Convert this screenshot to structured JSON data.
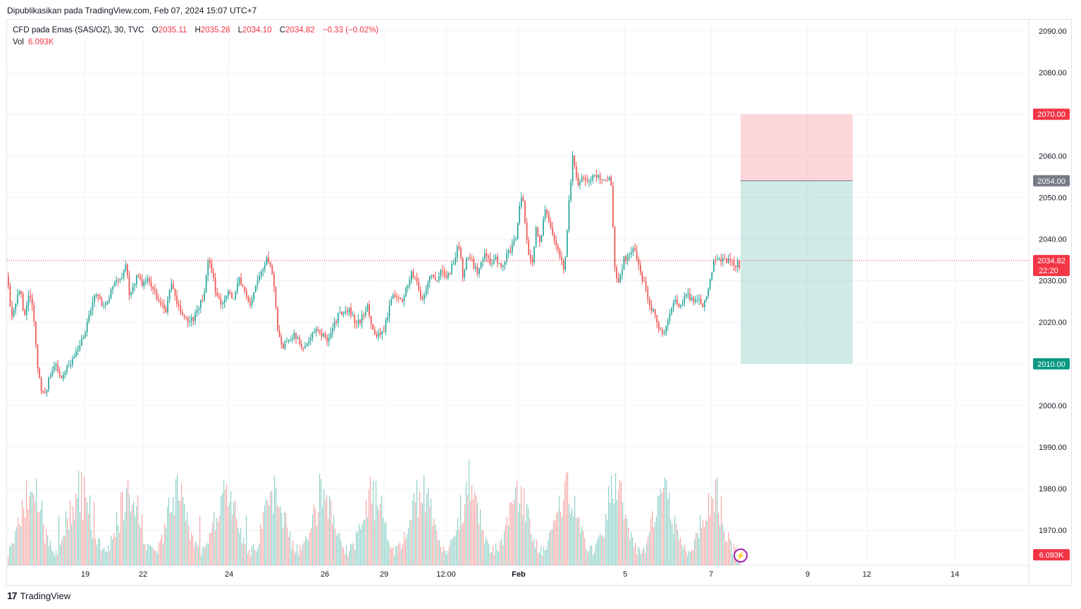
{
  "header": {
    "published": "Dipublikasikan pada TradingView.com, Feb 07, 2024 15:07 UTC+7"
  },
  "legend": {
    "symbol": "CFD pada Emas (SAS/OZ), 30, TVC",
    "open_label": "O",
    "open": "2035.11",
    "high_label": "H",
    "high": "2035.28",
    "low_label": "L",
    "low": "2034.10",
    "close_label": "C",
    "close": "2034.82",
    "change": "−0.33 (−0.02%)",
    "vol_label": "Vol",
    "vol": "6.093K"
  },
  "footer": {
    "brand": "TradingView",
    "logo": "17"
  },
  "colors": {
    "up": "#26a69a",
    "down": "#ef5350",
    "stop": "#f23645",
    "target": "#089981",
    "entry": "#787b86"
  },
  "chart_data": {
    "type": "candlestick",
    "symbol": "CFD pada Emas (SAS/OZ)",
    "interval": "30",
    "y_axis": {
      "ticks": [
        2090,
        2080,
        2070,
        2060,
        2050,
        2040,
        2030,
        2020,
        2010,
        2000,
        1990,
        1980,
        1970
      ],
      "range": [
        1965,
        2094
      ]
    },
    "x_ticks": [
      "19",
      "22",
      "24",
      "26",
      "29",
      "12:00",
      "Feb",
      "5",
      "7",
      "9",
      "12",
      "14"
    ],
    "price_path": [
      [
        0,
        2031
      ],
      [
        5,
        2020
      ],
      [
        12,
        2025
      ],
      [
        18,
        2028
      ],
      [
        24,
        2021
      ],
      [
        30,
        2027
      ],
      [
        36,
        2024
      ],
      [
        42,
        2010
      ],
      [
        48,
        2004
      ],
      [
        52,
        2002
      ],
      [
        60,
        2007
      ],
      [
        68,
        2010
      ],
      [
        76,
        2007
      ],
      [
        84,
        2009
      ],
      [
        92,
        2011
      ],
      [
        100,
        2014
      ],
      [
        108,
        2017
      ],
      [
        116,
        2022
      ],
      [
        124,
        2027
      ],
      [
        132,
        2025
      ],
      [
        140,
        2024
      ],
      [
        148,
        2028
      ],
      [
        156,
        2030
      ],
      [
        164,
        2032
      ],
      [
        168,
        2035
      ],
      [
        172,
        2026
      ],
      [
        176,
        2028
      ],
      [
        184,
        2031
      ],
      [
        192,
        2029
      ],
      [
        200,
        2030
      ],
      [
        208,
        2027
      ],
      [
        216,
        2025
      ],
      [
        224,
        2022
      ],
      [
        232,
        2030
      ],
      [
        240,
        2024
      ],
      [
        248,
        2022
      ],
      [
        256,
        2020
      ],
      [
        264,
        2021
      ],
      [
        272,
        2024
      ],
      [
        280,
        2027
      ],
      [
        284,
        2035
      ],
      [
        288,
        2033
      ],
      [
        296,
        2027
      ],
      [
        304,
        2024
      ],
      [
        312,
        2028
      ],
      [
        320,
        2025
      ],
      [
        328,
        2031
      ],
      [
        336,
        2027
      ],
      [
        344,
        2024
      ],
      [
        352,
        2029
      ],
      [
        360,
        2032
      ],
      [
        368,
        2035
      ],
      [
        374,
        2034
      ],
      [
        380,
        2025
      ],
      [
        384,
        2017
      ],
      [
        390,
        2014
      ],
      [
        398,
        2016
      ],
      [
        406,
        2017
      ],
      [
        414,
        2015
      ],
      [
        422,
        2014
      ],
      [
        430,
        2016
      ],
      [
        438,
        2018
      ],
      [
        446,
        2017
      ],
      [
        454,
        2016
      ],
      [
        462,
        2019
      ],
      [
        470,
        2022
      ],
      [
        478,
        2022
      ],
      [
        486,
        2023
      ],
      [
        494,
        2019
      ],
      [
        502,
        2021
      ],
      [
        510,
        2024
      ],
      [
        518,
        2018
      ],
      [
        526,
        2017
      ],
      [
        534,
        2018
      ],
      [
        542,
        2024
      ],
      [
        550,
        2027
      ],
      [
        558,
        2025
      ],
      [
        566,
        2028
      ],
      [
        574,
        2032
      ],
      [
        580,
        2030
      ],
      [
        588,
        2025
      ],
      [
        594,
        2028
      ],
      [
        600,
        2032
      ],
      [
        608,
        2029
      ],
      [
        616,
        2033
      ],
      [
        624,
        2031
      ],
      [
        632,
        2034
      ],
      [
        640,
        2039
      ],
      [
        646,
        2031
      ],
      [
        652,
        2036
      ],
      [
        660,
        2034
      ],
      [
        668,
        2032
      ],
      [
        676,
        2037
      ],
      [
        684,
        2034
      ],
      [
        692,
        2036
      ],
      [
        700,
        2033
      ],
      [
        708,
        2036
      ],
      [
        716,
        2038
      ],
      [
        722,
        2040
      ],
      [
        728,
        2051
      ],
      [
        732,
        2048
      ],
      [
        738,
        2038
      ],
      [
        744,
        2033
      ],
      [
        750,
        2043
      ],
      [
        756,
        2039
      ],
      [
        762,
        2047
      ],
      [
        770,
        2044
      ],
      [
        778,
        2038
      ],
      [
        784,
        2036
      ],
      [
        790,
        2032
      ],
      [
        796,
        2048
      ],
      [
        802,
        2060
      ],
      [
        808,
        2053
      ],
      [
        816,
        2055
      ],
      [
        824,
        2054
      ],
      [
        832,
        2055
      ],
      [
        840,
        2055
      ],
      [
        848,
        2054
      ],
      [
        856,
        2055
      ],
      [
        862,
        2031
      ],
      [
        868,
        2030
      ],
      [
        874,
        2035
      ],
      [
        880,
        2036
      ],
      [
        888,
        2038
      ],
      [
        896,
        2033
      ],
      [
        904,
        2029
      ],
      [
        912,
        2024
      ],
      [
        918,
        2022
      ],
      [
        924,
        2019
      ],
      [
        930,
        2017
      ],
      [
        936,
        2019
      ],
      [
        942,
        2024
      ],
      [
        948,
        2025
      ],
      [
        956,
        2024
      ],
      [
        964,
        2027
      ],
      [
        972,
        2025
      ],
      [
        980,
        2026
      ],
      [
        988,
        2024
      ],
      [
        996,
        2029
      ],
      [
        1002,
        2035
      ],
      [
        1008,
        2036
      ],
      [
        1014,
        2035
      ],
      [
        1020,
        2035
      ],
      [
        1028,
        2034
      ],
      [
        1036,
        2034
      ],
      [
        1042,
        2033
      ],
      [
        1046,
        2034.82
      ]
    ],
    "volume": {
      "last": "6.093K"
    },
    "position": {
      "type": "short",
      "entry": 2054.0,
      "stop": 2070.0,
      "target": 2010.0,
      "entry_label": "2054.00",
      "stop_label": "2070.00",
      "target_label": "2010.00"
    },
    "last": {
      "price": 2034.82,
      "label": "2034.82",
      "countdown": "22:20"
    },
    "grid": true
  }
}
